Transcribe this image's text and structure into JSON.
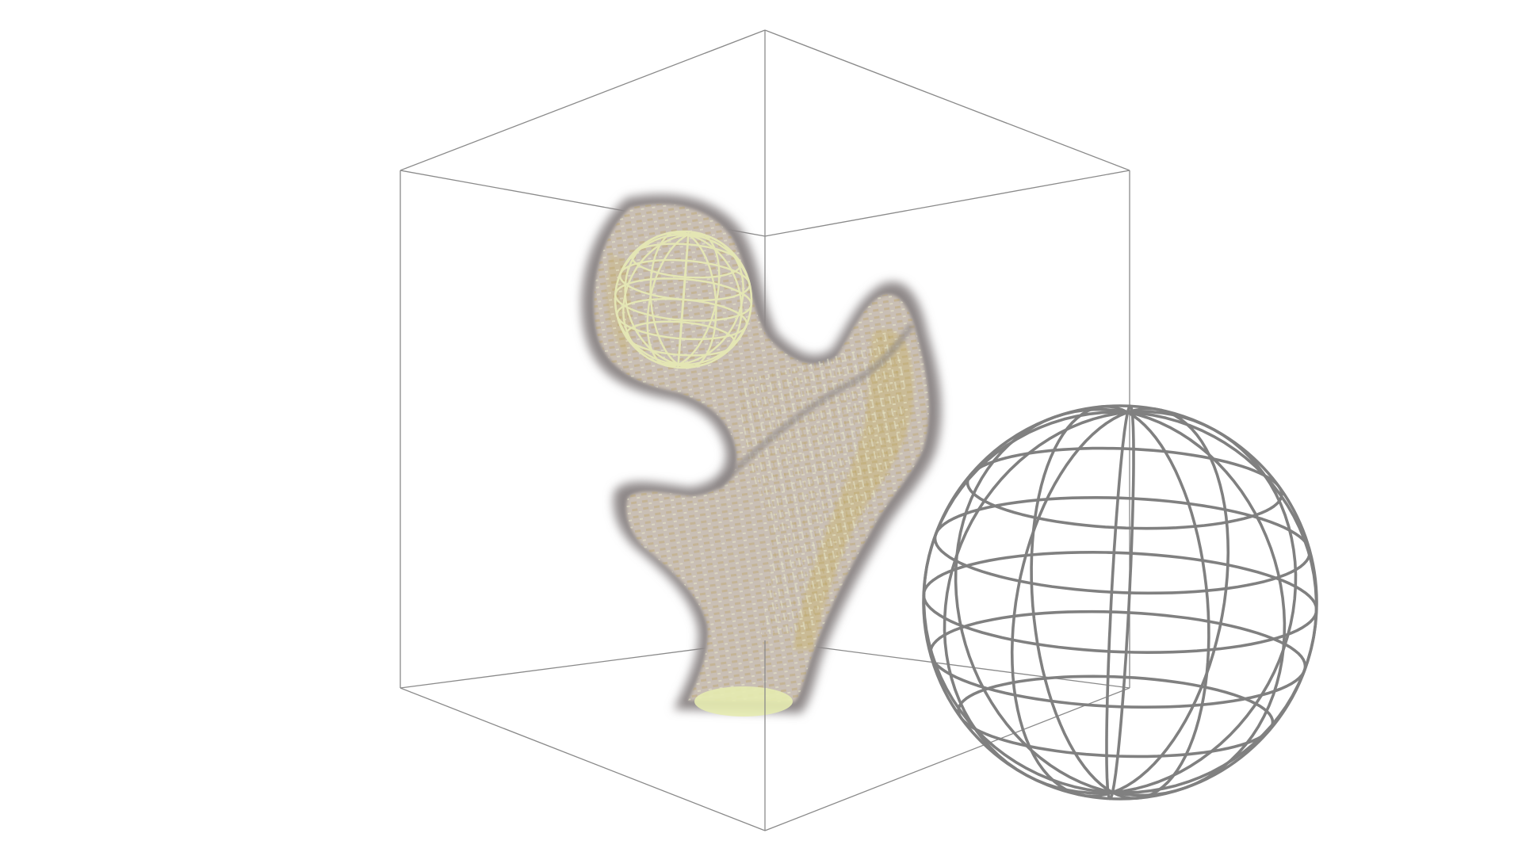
{
  "scene": {
    "background_color": "#ffffff",
    "objects": [
      {
        "name": "bounding-box",
        "kind": "wireframe-cube"
      },
      {
        "name": "femur-volume",
        "kind": "voxel-volume-render"
      },
      {
        "name": "femoral-head-fitted-sphere",
        "kind": "wireframe-sphere"
      },
      {
        "name": "reference-sphere",
        "kind": "wireframe-sphere"
      },
      {
        "name": "shaft-cross-section",
        "kind": "ellipse-cap"
      }
    ]
  },
  "colors": {
    "box_line": "#8a8a8a",
    "bone_fill": "#c9bfb5",
    "bone_outline": "#8e8888",
    "bone_stripe": "#b9a15a",
    "bone_highlight": "#dcdcb8",
    "inner_sphere_line": "#e4e6b4",
    "outer_sphere_line": "#808080",
    "shaft_cap": "#e6ebb0"
  }
}
